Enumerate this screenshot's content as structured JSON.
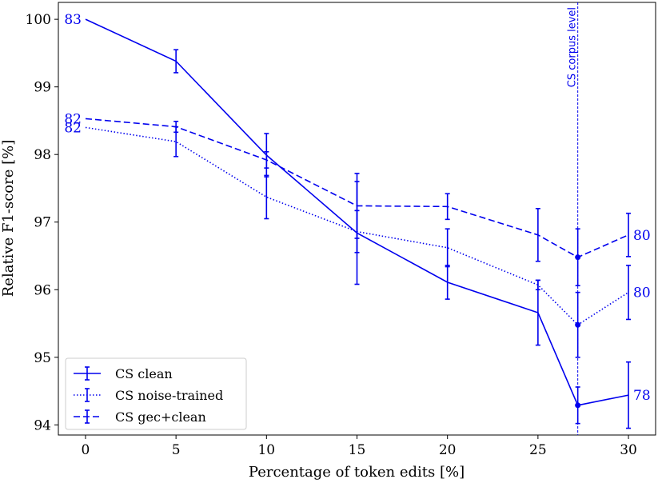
{
  "chart_data": {
    "type": "line",
    "title": "",
    "xlabel": "Percentage of token edits [%]",
    "ylabel": "Relative F1-score [%]",
    "xlim": [
      -1.5,
      31.5
    ],
    "ylim": [
      93.85,
      100.25
    ],
    "xticks": [
      0,
      5,
      10,
      15,
      20,
      25,
      30
    ],
    "yticks": [
      94,
      95,
      96,
      97,
      98,
      99,
      100
    ],
    "color": "#0000ee",
    "series": [
      {
        "name": "CS clean",
        "style": "solid",
        "x": [
          0,
          5,
          10,
          15,
          20,
          25,
          27.2,
          30
        ],
        "y": [
          100.0,
          99.38,
          97.99,
          96.84,
          96.11,
          95.66,
          94.29,
          94.44
        ],
        "err": [
          0.0,
          0.17,
          0.32,
          0.76,
          0.25,
          0.48,
          0.27,
          0.49
        ]
      },
      {
        "name": "CS noise-trained",
        "style": "dotted",
        "x": [
          0,
          5,
          10,
          15,
          20,
          25,
          27.2,
          30
        ],
        "y": [
          98.4,
          98.19,
          97.37,
          96.86,
          96.62,
          96.07,
          95.48,
          95.96
        ],
        "err": [
          0.0,
          0.22,
          0.32,
          0.31,
          0.28,
          0.07,
          0.48,
          0.4
        ]
      },
      {
        "name": "CS gec+clean",
        "style": "dashed",
        "x": [
          0,
          5,
          10,
          15,
          20,
          25,
          27.2,
          30
        ],
        "y": [
          98.53,
          98.41,
          97.92,
          97.24,
          97.23,
          96.81,
          96.48,
          96.81
        ],
        "err": [
          0.0,
          0.08,
          0.12,
          0.48,
          0.19,
          0.39,
          0.42,
          0.32
        ]
      }
    ],
    "vertical_line": {
      "x": 27.2,
      "label": "CS corpus level"
    },
    "annotations": [
      {
        "text": "83",
        "x": 0,
        "y": 100.0,
        "side": "left"
      },
      {
        "text": "82",
        "x": 0,
        "y": 98.53,
        "side": "left"
      },
      {
        "text": "82",
        "x": 0,
        "y": 98.4,
        "side": "left"
      },
      {
        "text": "80",
        "x": 30,
        "y": 96.81,
        "side": "right"
      },
      {
        "text": "80",
        "x": 30,
        "y": 95.96,
        "side": "right"
      },
      {
        "text": "78",
        "x": 30,
        "y": 94.44,
        "side": "right"
      }
    ],
    "legend": {
      "position": "bottom-left",
      "entries": [
        "CS clean",
        "CS noise-trained",
        "CS gec+clean"
      ]
    },
    "grid": false
  }
}
